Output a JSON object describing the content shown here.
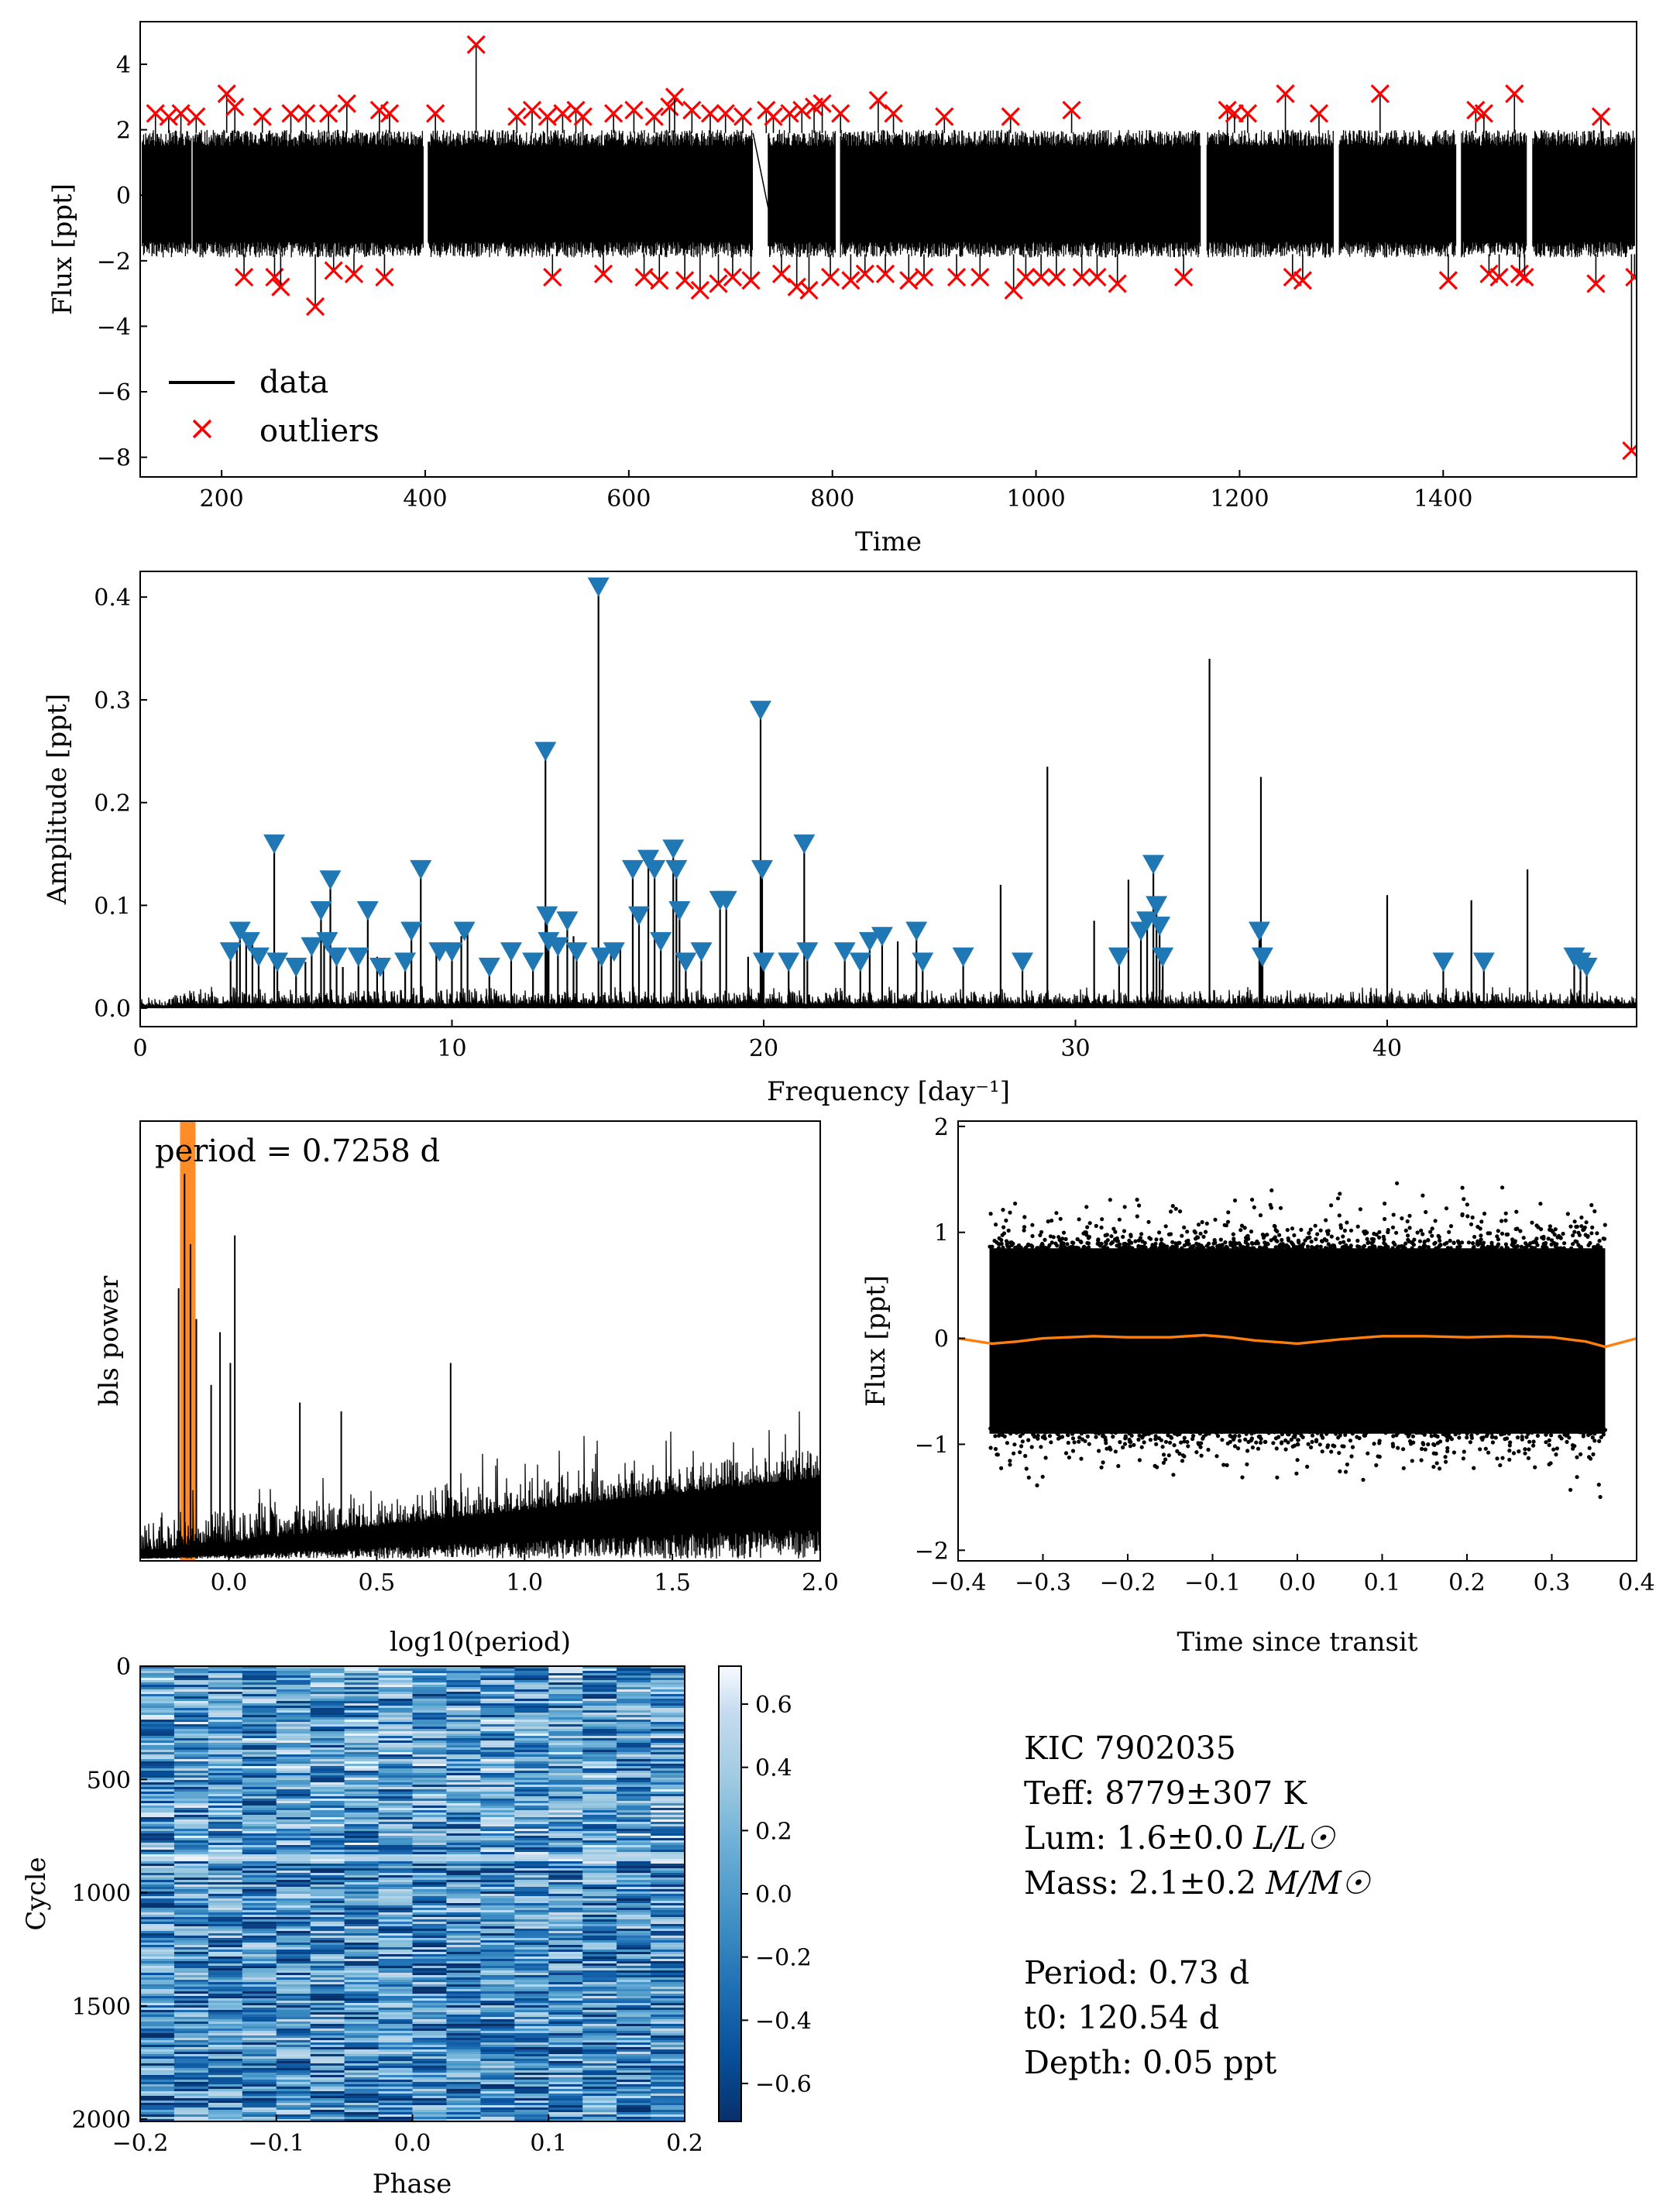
{
  "chart_data": [
    {
      "type": "line",
      "panel": "light-curve",
      "xlabel": "Time",
      "ylabel": "Flux [ppt]",
      "xlim": [
        120,
        1590
      ],
      "ylim": [
        -8.6,
        5.3
      ],
      "xticks": [
        200,
        400,
        600,
        800,
        1000,
        1200,
        1400
      ],
      "yticks": [
        -8,
        -6,
        -4,
        -2,
        0,
        2,
        4
      ],
      "tick_labels_x": [
        "200",
        "400",
        "600",
        "800",
        "1000",
        "1200",
        "1400"
      ],
      "tick_labels_y": [
        "−8",
        "−6",
        "−4",
        "−2",
        "0",
        "2",
        "4"
      ],
      "grid": false,
      "legend_placement": "lower-left",
      "legend": [
        "data",
        "outliers"
      ],
      "data_band": {
        "upper": 2.0,
        "lower": -1.9
      },
      "segments": [
        [
          122,
          170
        ],
        [
          172,
          398
        ],
        [
          403,
          722
        ],
        [
          737,
          803
        ],
        [
          808,
          1162
        ],
        [
          1168,
          1292
        ],
        [
          1298,
          1413
        ],
        [
          1418,
          1482
        ],
        [
          1488,
          1588
        ]
      ],
      "outliers": [
        [
          135,
          2.5
        ],
        [
          148,
          2.4
        ],
        [
          160,
          2.5
        ],
        [
          175,
          2.4
        ],
        [
          205,
          3.1
        ],
        [
          213,
          2.7
        ],
        [
          222,
          -2.5
        ],
        [
          240,
          2.4
        ],
        [
          252,
          -2.5
        ],
        [
          258,
          -2.8
        ],
        [
          268,
          2.5
        ],
        [
          283,
          2.5
        ],
        [
          292,
          -3.4
        ],
        [
          305,
          2.5
        ],
        [
          310,
          -2.3
        ],
        [
          323,
          2.8
        ],
        [
          330,
          -2.4
        ],
        [
          355,
          2.6
        ],
        [
          360,
          -2.5
        ],
        [
          365,
          2.5
        ],
        [
          410,
          2.5
        ],
        [
          450,
          4.6
        ],
        [
          490,
          2.4
        ],
        [
          505,
          2.6
        ],
        [
          520,
          2.4
        ],
        [
          525,
          -2.5
        ],
        [
          535,
          2.5
        ],
        [
          548,
          2.6
        ],
        [
          555,
          2.4
        ],
        [
          575,
          -2.4
        ],
        [
          585,
          2.5
        ],
        [
          605,
          2.6
        ],
        [
          615,
          -2.5
        ],
        [
          625,
          2.4
        ],
        [
          630,
          -2.6
        ],
        [
          640,
          2.7
        ],
        [
          645,
          3.0
        ],
        [
          655,
          -2.6
        ],
        [
          662,
          2.6
        ],
        [
          670,
          -2.9
        ],
        [
          680,
          2.5
        ],
        [
          688,
          -2.7
        ],
        [
          695,
          2.5
        ],
        [
          702,
          -2.5
        ],
        [
          712,
          2.4
        ],
        [
          720,
          -2.6
        ],
        [
          735,
          2.6
        ],
        [
          742,
          2.4
        ],
        [
          750,
          -2.4
        ],
        [
          758,
          2.5
        ],
        [
          765,
          -2.8
        ],
        [
          770,
          2.6
        ],
        [
          777,
          -2.9
        ],
        [
          782,
          2.7
        ],
        [
          790,
          2.8
        ],
        [
          798,
          -2.5
        ],
        [
          808,
          2.5
        ],
        [
          818,
          -2.6
        ],
        [
          832,
          -2.4
        ],
        [
          845,
          2.9
        ],
        [
          852,
          -2.4
        ],
        [
          860,
          2.5
        ],
        [
          875,
          -2.6
        ],
        [
          890,
          -2.5
        ],
        [
          910,
          2.4
        ],
        [
          922,
          -2.5
        ],
        [
          945,
          -2.5
        ],
        [
          975,
          2.4
        ],
        [
          978,
          -2.9
        ],
        [
          990,
          -2.5
        ],
        [
          1005,
          -2.5
        ],
        [
          1020,
          -2.5
        ],
        [
          1035,
          2.6
        ],
        [
          1045,
          -2.5
        ],
        [
          1060,
          -2.5
        ],
        [
          1080,
          -2.7
        ],
        [
          1145,
          -2.5
        ],
        [
          1188,
          2.6
        ],
        [
          1195,
          2.5
        ],
        [
          1208,
          2.5
        ],
        [
          1245,
          3.1
        ],
        [
          1252,
          -2.5
        ],
        [
          1262,
          -2.6
        ],
        [
          1278,
          2.5
        ],
        [
          1338,
          3.1
        ],
        [
          1405,
          -2.6
        ],
        [
          1432,
          2.6
        ],
        [
          1440,
          2.5
        ],
        [
          1445,
          -2.4
        ],
        [
          1455,
          -2.5
        ],
        [
          1470,
          3.1
        ],
        [
          1475,
          -2.4
        ],
        [
          1480,
          -2.5
        ],
        [
          1550,
          -2.7
        ],
        [
          1555,
          2.4
        ],
        [
          1585,
          -7.8
        ],
        [
          1588,
          -2.5
        ]
      ],
      "colors": {
        "data": "#000000",
        "outliers": "#ff0000"
      }
    },
    {
      "type": "line",
      "panel": "amplitude-spectrum",
      "xlabel": "Frequency [day⁻¹]",
      "ylabel": "Amplitude [ppt]",
      "xlim": [
        0,
        48
      ],
      "ylim": [
        -0.018,
        0.425
      ],
      "xticks": [
        0,
        10,
        20,
        30,
        40
      ],
      "yticks": [
        0.0,
        0.1,
        0.2,
        0.3,
        0.4
      ],
      "tick_labels_x": [
        "0",
        "10",
        "20",
        "30",
        "40"
      ],
      "tick_labels_y": [
        "0.0",
        "0.1",
        "0.2",
        "0.3",
        "0.4"
      ],
      "grid": false,
      "peaks": [
        [
          2.9,
          0.055
        ],
        [
          3.1,
          0.06
        ],
        [
          3.2,
          0.075
        ],
        [
          3.4,
          0.07
        ],
        [
          3.6,
          0.065
        ],
        [
          3.8,
          0.05
        ],
        [
          4.3,
          0.16
        ],
        [
          4.4,
          0.045
        ],
        [
          5.0,
          0.04
        ],
        [
          5.3,
          0.045
        ],
        [
          5.5,
          0.06
        ],
        [
          5.8,
          0.095
        ],
        [
          5.9,
          0.065
        ],
        [
          6.1,
          0.125
        ],
        [
          6.3,
          0.05
        ],
        [
          6.5,
          0.04
        ],
        [
          7.0,
          0.05
        ],
        [
          7.3,
          0.095
        ],
        [
          7.6,
          0.05
        ],
        [
          7.8,
          0.04
        ],
        [
          8.5,
          0.045
        ],
        [
          8.7,
          0.075
        ],
        [
          9.0,
          0.135
        ],
        [
          9.5,
          0.06
        ],
        [
          10.0,
          0.055
        ],
        [
          10.3,
          0.07
        ],
        [
          10.5,
          0.075
        ],
        [
          11.2,
          0.04
        ],
        [
          11.9,
          0.055
        ],
        [
          12.6,
          0.05
        ],
        [
          13.0,
          0.25
        ],
        [
          13.05,
          0.09
        ],
        [
          13.1,
          0.065
        ],
        [
          13.4,
          0.06
        ],
        [
          13.7,
          0.085
        ],
        [
          13.9,
          0.07
        ],
        [
          14.0,
          0.055
        ],
        [
          14.7,
          0.41
        ],
        [
          14.8,
          0.05
        ],
        [
          15.1,
          0.055
        ],
        [
          15.4,
          0.06
        ],
        [
          15.8,
          0.135
        ],
        [
          16.0,
          0.09
        ],
        [
          16.3,
          0.145
        ],
        [
          16.5,
          0.135
        ],
        [
          16.7,
          0.065
        ],
        [
          17.1,
          0.155
        ],
        [
          17.2,
          0.135
        ],
        [
          17.3,
          0.095
        ],
        [
          17.5,
          0.045
        ],
        [
          18.0,
          0.055
        ],
        [
          18.6,
          0.105
        ],
        [
          18.8,
          0.105
        ],
        [
          19.5,
          0.05
        ],
        [
          19.9,
          0.29
        ],
        [
          19.95,
          0.135
        ],
        [
          20.0,
          0.045
        ],
        [
          20.8,
          0.045
        ],
        [
          21.3,
          0.16
        ],
        [
          21.4,
          0.055
        ],
        [
          22.6,
          0.055
        ],
        [
          23.1,
          0.045
        ],
        [
          23.4,
          0.065
        ],
        [
          23.8,
          0.07
        ],
        [
          24.3,
          0.065
        ],
        [
          24.9,
          0.075
        ],
        [
          25.1,
          0.045
        ],
        [
          26.4,
          0.05
        ],
        [
          27.6,
          0.12
        ],
        [
          28.3,
          0.045
        ],
        [
          29.1,
          0.235
        ],
        [
          30.6,
          0.085
        ],
        [
          31.4,
          0.05
        ],
        [
          31.7,
          0.125
        ],
        [
          32.1,
          0.075
        ],
        [
          32.3,
          0.085
        ],
        [
          32.5,
          0.14
        ],
        [
          32.6,
          0.1
        ],
        [
          32.7,
          0.08
        ],
        [
          32.8,
          0.05
        ],
        [
          34.3,
          0.34
        ],
        [
          35.9,
          0.075
        ],
        [
          35.95,
          0.225
        ],
        [
          36.0,
          0.05
        ],
        [
          40.0,
          0.11
        ],
        [
          41.8,
          0.045
        ],
        [
          42.7,
          0.105
        ],
        [
          43.1,
          0.045
        ],
        [
          44.5,
          0.135
        ],
        [
          46.0,
          0.05
        ],
        [
          46.2,
          0.045
        ],
        [
          46.4,
          0.04
        ]
      ],
      "markers": [
        [
          2.9,
          0.055
        ],
        [
          3.2,
          0.075
        ],
        [
          3.5,
          0.065
        ],
        [
          3.8,
          0.05
        ],
        [
          4.3,
          0.16
        ],
        [
          4.4,
          0.045
        ],
        [
          5.0,
          0.04
        ],
        [
          5.5,
          0.06
        ],
        [
          5.8,
          0.095
        ],
        [
          6.0,
          0.065
        ],
        [
          6.1,
          0.125
        ],
        [
          6.3,
          0.05
        ],
        [
          7.0,
          0.05
        ],
        [
          7.3,
          0.095
        ],
        [
          7.7,
          0.04
        ],
        [
          8.5,
          0.045
        ],
        [
          8.7,
          0.075
        ],
        [
          9.0,
          0.135
        ],
        [
          9.6,
          0.055
        ],
        [
          10.0,
          0.055
        ],
        [
          10.4,
          0.075
        ],
        [
          11.2,
          0.04
        ],
        [
          11.9,
          0.055
        ],
        [
          12.6,
          0.045
        ],
        [
          13.0,
          0.25
        ],
        [
          13.05,
          0.09
        ],
        [
          13.1,
          0.065
        ],
        [
          13.4,
          0.06
        ],
        [
          13.7,
          0.085
        ],
        [
          14.0,
          0.055
        ],
        [
          14.7,
          0.41
        ],
        [
          14.8,
          0.05
        ],
        [
          15.2,
          0.055
        ],
        [
          15.8,
          0.135
        ],
        [
          16.0,
          0.09
        ],
        [
          16.3,
          0.145
        ],
        [
          16.5,
          0.135
        ],
        [
          16.7,
          0.065
        ],
        [
          17.1,
          0.155
        ],
        [
          17.2,
          0.135
        ],
        [
          17.3,
          0.095
        ],
        [
          17.5,
          0.045
        ],
        [
          18.0,
          0.055
        ],
        [
          18.6,
          0.105
        ],
        [
          18.8,
          0.105
        ],
        [
          19.9,
          0.29
        ],
        [
          19.95,
          0.135
        ],
        [
          20.0,
          0.045
        ],
        [
          20.8,
          0.045
        ],
        [
          21.3,
          0.16
        ],
        [
          21.4,
          0.055
        ],
        [
          22.6,
          0.055
        ],
        [
          23.1,
          0.045
        ],
        [
          23.4,
          0.065
        ],
        [
          23.8,
          0.07
        ],
        [
          24.9,
          0.075
        ],
        [
          25.1,
          0.045
        ],
        [
          26.4,
          0.05
        ],
        [
          28.3,
          0.045
        ],
        [
          31.4,
          0.05
        ],
        [
          32.1,
          0.075
        ],
        [
          32.3,
          0.085
        ],
        [
          32.5,
          0.14
        ],
        [
          32.6,
          0.1
        ],
        [
          32.7,
          0.08
        ],
        [
          32.8,
          0.05
        ],
        [
          35.9,
          0.075
        ],
        [
          36.0,
          0.05
        ],
        [
          41.8,
          0.045
        ],
        [
          43.1,
          0.045
        ],
        [
          46.0,
          0.05
        ],
        [
          46.2,
          0.045
        ],
        [
          46.4,
          0.04
        ]
      ],
      "colors": {
        "line": "#000000",
        "marker": "#1f77b4"
      }
    },
    {
      "type": "line",
      "panel": "bls-periodogram",
      "xlabel": "log10(period)",
      "ylabel": "bls power",
      "xlim": [
        -0.3,
        2.0
      ],
      "ylim": [
        0,
        1
      ],
      "xticks": [
        0.0,
        0.5,
        1.0,
        1.5,
        2.0
      ],
      "tick_labels_x": [
        "0.0",
        "0.5",
        "1.0",
        "1.5",
        "2.0"
      ],
      "annotation": "period = 0.7258 d",
      "highlight_log10_period": -0.139,
      "grid": false,
      "colors": {
        "line": "#000000",
        "highlight": "#ff7f0e"
      }
    },
    {
      "type": "scatter",
      "panel": "folded-transit",
      "xlabel": "Time since transit",
      "ylabel": "Flux [ppt]",
      "xlim": [
        -0.4,
        0.4
      ],
      "ylim": [
        -2.1,
        2.05
      ],
      "xticks": [
        -0.4,
        -0.3,
        -0.2,
        -0.1,
        0.0,
        0.1,
        0.2,
        0.3,
        0.4
      ],
      "yticks": [
        -2,
        -1,
        0,
        1,
        2
      ],
      "tick_labels_x": [
        "−0.4",
        "−0.3",
        "−0.2",
        "−0.1",
        "0.0",
        "0.1",
        "0.2",
        "0.3",
        "0.4"
      ],
      "tick_labels_y": [
        "−2",
        "−1",
        "0",
        "1",
        "2"
      ],
      "data_range_x": [
        -0.363,
        0.363
      ],
      "band": {
        "upper": 0.85,
        "lower": -0.9
      },
      "model_curve": [
        [
          -0.4,
          0.0
        ],
        [
          -0.36,
          -0.05
        ],
        [
          -0.33,
          -0.03
        ],
        [
          -0.3,
          0.0
        ],
        [
          -0.24,
          0.02
        ],
        [
          -0.2,
          0.01
        ],
        [
          -0.15,
          0.01
        ],
        [
          -0.11,
          0.03
        ],
        [
          -0.08,
          0.01
        ],
        [
          -0.05,
          -0.02
        ],
        [
          0.0,
          -0.05
        ],
        [
          0.05,
          -0.01
        ],
        [
          0.1,
          0.02
        ],
        [
          0.15,
          0.02
        ],
        [
          0.2,
          0.01
        ],
        [
          0.25,
          0.02
        ],
        [
          0.3,
          0.01
        ],
        [
          0.34,
          -0.03
        ],
        [
          0.363,
          -0.08
        ],
        [
          0.4,
          0.0
        ]
      ],
      "grid": false,
      "colors": {
        "points": "#000000",
        "model": "#ff7f0e"
      }
    },
    {
      "type": "heatmap",
      "panel": "river-plot",
      "xlabel": "Phase",
      "ylabel": "Cycle",
      "xlim": [
        -0.2,
        0.2
      ],
      "ylim": [
        2010,
        0
      ],
      "xticks": [
        -0.2,
        -0.1,
        0.0,
        0.1,
        0.2
      ],
      "yticks": [
        0,
        500,
        1000,
        1500,
        2000
      ],
      "tick_labels_x": [
        "−0.2",
        "−0.1",
        "0.0",
        "0.1",
        "0.2"
      ],
      "tick_labels_y": [
        "0",
        "500",
        "1000",
        "1500",
        "2000"
      ],
      "colorbar": {
        "range": [
          -0.72,
          0.72
        ],
        "ticks": [
          -0.6,
          -0.4,
          -0.2,
          0.0,
          0.2,
          0.4,
          0.6
        ],
        "tick_labels": [
          "−0.6",
          "−0.4",
          "−0.2",
          "0.0",
          "0.2",
          "0.4",
          "0.6"
        ],
        "colormap": "Blues_r"
      },
      "grid": false
    }
  ],
  "info": {
    "kic": "KIC 7902035",
    "teff": "Teff: 8779±307 K",
    "lum": "Lum: 1.6±0.0",
    "lum_unit": "L/L☉",
    "mass": "Mass: 2.1±0.2",
    "mass_unit": "M/M☉",
    "period": "Period: 0.73 d",
    "t0": "t0: 120.54 d",
    "depth": "Depth: 0.05 ppt"
  },
  "legend": {
    "data": "data",
    "outliers": "outliers"
  }
}
